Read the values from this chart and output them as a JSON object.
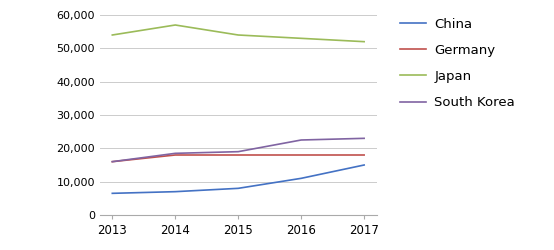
{
  "years": [
    2013,
    2014,
    2015,
    2016,
    2017
  ],
  "series": {
    "China": [
      6500,
      7000,
      8000,
      11000,
      15000
    ],
    "Germany": [
      16000,
      18000,
      18000,
      18000,
      18000
    ],
    "Japan": [
      54000,
      57000,
      54000,
      53000,
      52000
    ],
    "South Korea": [
      16000,
      18500,
      19000,
      22500,
      23000
    ]
  },
  "colors": {
    "China": "#4472C4",
    "Germany": "#C0504D",
    "Japan": "#9BBB59",
    "South Korea": "#8064A2"
  },
  "ylim": [
    0,
    60000
  ],
  "yticks": [
    0,
    10000,
    20000,
    30000,
    40000,
    50000,
    60000
  ],
  "legend_order": [
    "China",
    "Germany",
    "Japan",
    "South Korea"
  ],
  "background_color": "#ffffff",
  "grid_color": "#cccccc"
}
